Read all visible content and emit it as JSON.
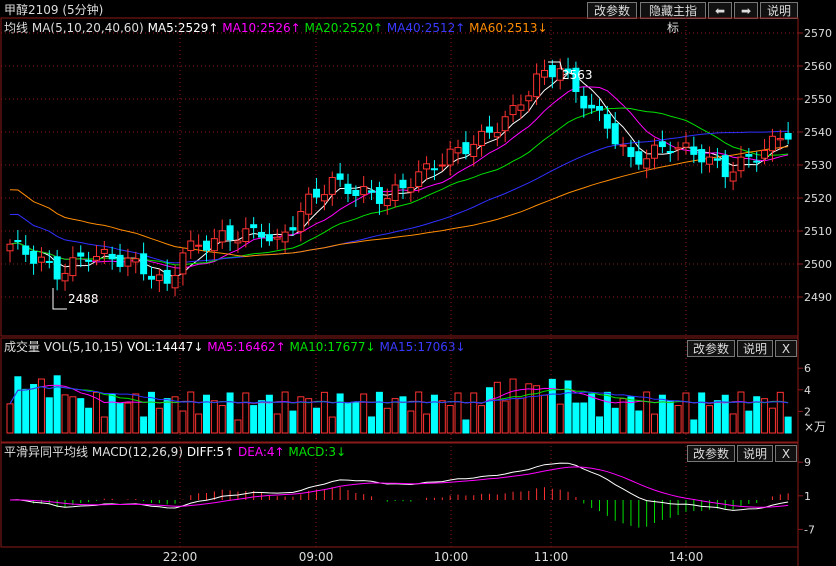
{
  "title": "甲醇2109 (5分钟)",
  "toolbar": {
    "params_label": "改参数",
    "hide_indicator_label": "隐藏主指标",
    "left_label": "⬅",
    "right_label": "➡",
    "help_label": "说明"
  },
  "main_panel": {
    "indicator": "均线",
    "params": "MA(5,10,20,40,60)",
    "ma5": "MA5:2529↑",
    "ma10": "MA10:2526↑",
    "ma20": "MA20:2520↑",
    "ma40": "MA40:2512↑",
    "ma60": "MA60:2513↓",
    "y_ticks": [
      "2570",
      "2560",
      "2550",
      "2540",
      "2530",
      "2520",
      "2510",
      "2500",
      "2490"
    ],
    "high_label": "2563",
    "low_label": "2488"
  },
  "volume_panel": {
    "name": "成交量",
    "params": "VOL(5,10,15)",
    "vol": "VOL:14447↓",
    "ma5": "MA5:16462↑",
    "ma10": "MA10:17677↓",
    "ma15": "MA15:17063↓",
    "params_label": "改参数",
    "help_label": "说明",
    "close_label": "X",
    "y_ticks": [
      "6",
      "4",
      "2"
    ],
    "unit": "×万"
  },
  "macd_panel": {
    "name": "平滑异同平均线",
    "params": "MACD(12,26,9)",
    "diff": "DIFF:5↑",
    "dea": "DEA:4↑",
    "macd": "MACD:3↓",
    "params_label": "改参数",
    "help_label": "说明",
    "close_label": "X",
    "y_ticks": [
      "9",
      "1",
      "-7"
    ]
  },
  "time_axis": [
    "22:00",
    "09:00",
    "10:00",
    "11:00",
    "14:00"
  ],
  "colors": {
    "up": "#ff3232",
    "down": "#00ffff",
    "ma5": "#ffffff",
    "ma10": "#ff00ff",
    "ma20": "#00e000",
    "ma40": "#3030ff",
    "ma60": "#ff8c00",
    "grid": "#8b1a1a"
  }
}
